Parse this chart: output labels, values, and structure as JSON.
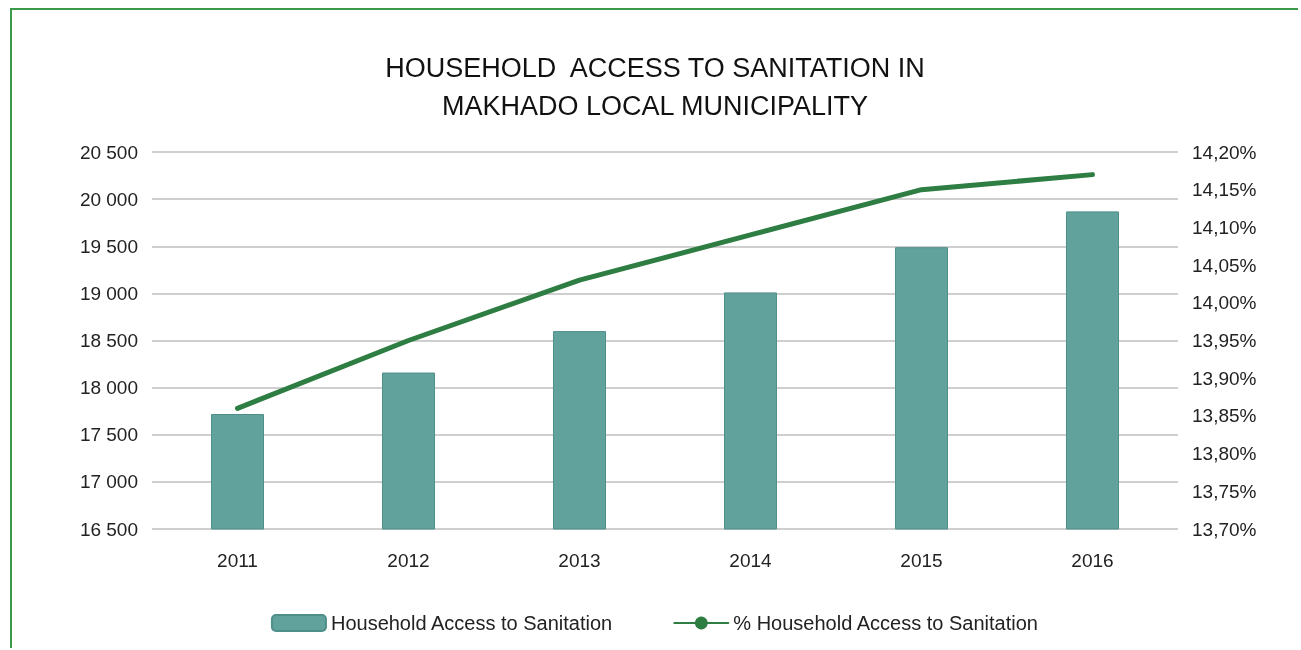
{
  "chart_data": {
    "type": "bar",
    "title": "HOUSEHOLD  ACCESS TO SANITATION IN\nMAKHADO LOCAL MUNICIPALITY",
    "categories": [
      "2011",
      "2012",
      "2013",
      "2014",
      "2015",
      "2016"
    ],
    "series": [
      {
        "name": "Household Access to Sanitation",
        "color": "#62a29d",
        "values": [
          17720,
          18160,
          18600,
          19010,
          19490,
          19870
        ]
      },
      {
        "name": "% Household Access to Sanitation",
        "type": "line",
        "axis": "y2",
        "color": "#2e7d42",
        "values": [
          13.86,
          13.95,
          14.03,
          14.09,
          14.15,
          14.17
        ]
      }
    ],
    "ylim": [
      16500,
      20500
    ],
    "yticks": [
      {
        "value": 16500,
        "label": "16 500"
      },
      {
        "value": 17000,
        "label": "17 000"
      },
      {
        "value": 17500,
        "label": "17 500"
      },
      {
        "value": 18000,
        "label": "18 000"
      },
      {
        "value": 18500,
        "label": "18 500"
      },
      {
        "value": 19000,
        "label": "19 000"
      },
      {
        "value": 19500,
        "label": "19 500"
      },
      {
        "value": 20000,
        "label": "20 000"
      },
      {
        "value": 20500,
        "label": "20 500"
      }
    ],
    "y2lim": [
      13.7,
      14.2
    ],
    "y2ticks": [
      {
        "value": 13.7,
        "label": "13,70%"
      },
      {
        "value": 13.75,
        "label": "13,75%"
      },
      {
        "value": 13.8,
        "label": "13,80%"
      },
      {
        "value": 13.85,
        "label": "13,85%"
      },
      {
        "value": 13.9,
        "label": "13,90%"
      },
      {
        "value": 13.95,
        "label": "13,95%"
      },
      {
        "value": 14.0,
        "label": "14,00%"
      },
      {
        "value": 14.05,
        "label": "14,05%"
      },
      {
        "value": 14.1,
        "label": "14,10%"
      },
      {
        "value": 14.15,
        "label": "14,15%"
      },
      {
        "value": 14.2,
        "label": "14,20%"
      }
    ],
    "grid": "y",
    "legend": "bottom",
    "marker": "none",
    "line_style": "solid"
  }
}
